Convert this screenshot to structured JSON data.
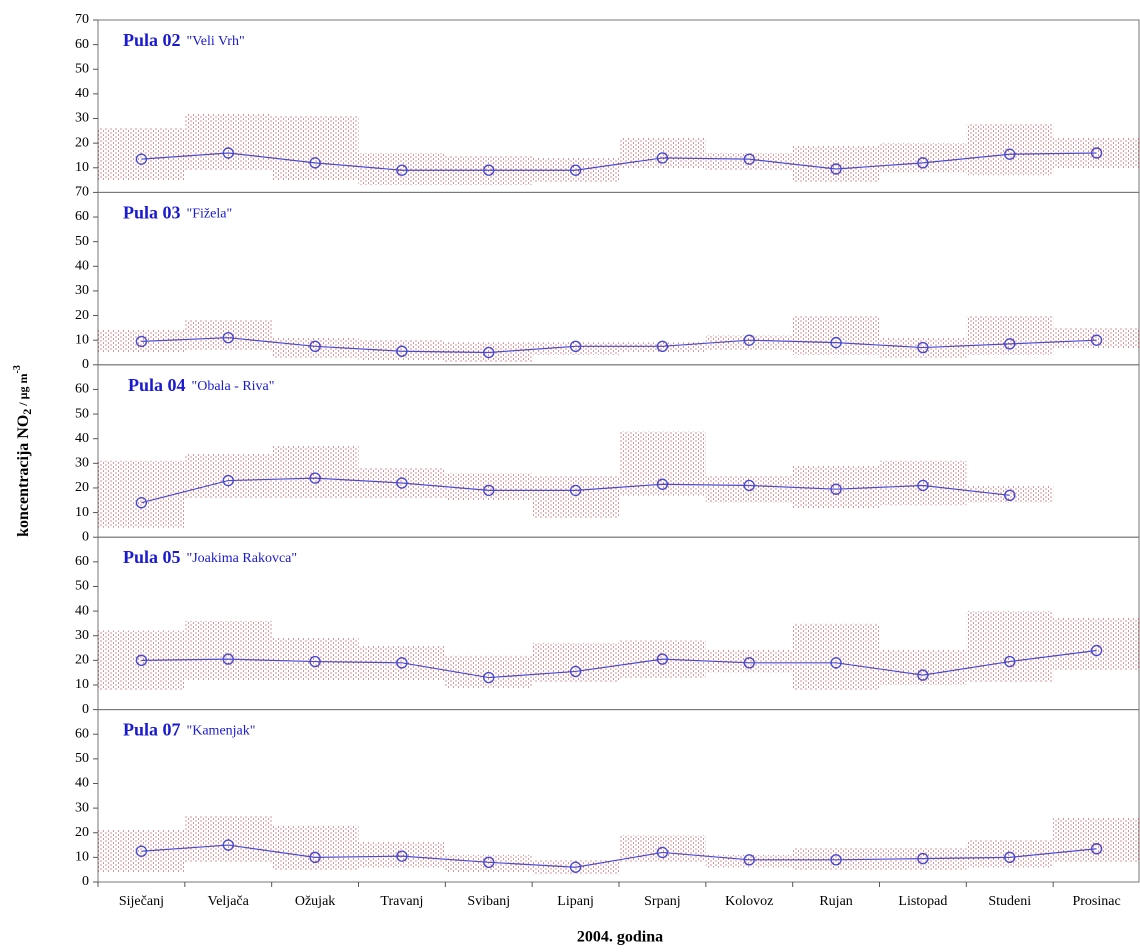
{
  "ylabel": {
    "text": "koncentracija NO",
    "sub": "2",
    "unit": " / µg m",
    "sup": "-3"
  },
  "xlabel": "2004. godina",
  "chart_data": [
    {
      "type": "line",
      "station": "Pula 02",
      "name": "\"Veli Vrh\"",
      "color": "#4a4ad0",
      "range_color": "#c0262c",
      "values": [
        13.5,
        16,
        12,
        9,
        9,
        9,
        14,
        13.5,
        9.5,
        12,
        15.5,
        16
      ],
      "low": [
        5,
        9,
        5,
        3,
        3,
        4,
        10,
        9,
        4,
        8,
        7,
        10
      ],
      "high": [
        26,
        32,
        31,
        16,
        15,
        14,
        22,
        16,
        19,
        20,
        28,
        22
      ],
      "ylim": [
        0,
        70
      ],
      "yticks": [
        10,
        20,
        30,
        40,
        50,
        60,
        70
      ]
    },
    {
      "type": "line",
      "station": "Pula 03",
      "name": "\"Fižela\"",
      "color": "#4a4ad0",
      "range_color": "#c0262c",
      "values": [
        9.5,
        11,
        7.5,
        5.5,
        5,
        7.5,
        7.5,
        10,
        9,
        7,
        8.5,
        10
      ],
      "low": [
        5,
        6,
        3,
        2,
        1,
        4,
        5,
        6,
        4,
        3,
        4,
        7
      ],
      "high": [
        14,
        18,
        11,
        10,
        9,
        9,
        9,
        12,
        20,
        11,
        20,
        15
      ],
      "ylim": [
        0,
        70
      ],
      "yticks": [
        0,
        10,
        20,
        30,
        40,
        50,
        60,
        70
      ]
    },
    {
      "type": "line",
      "station": "Pula 04",
      "name": "\"Obala - Riva\"",
      "color": "#4a4ad0",
      "range_color": "#c0262c",
      "values": [
        14,
        23,
        24,
        22,
        19,
        19,
        21.5,
        21,
        19.5,
        21,
        17,
        null
      ],
      "low": [
        4,
        16,
        16,
        16,
        15,
        8,
        17,
        14,
        12,
        13,
        14,
        null
      ],
      "high": [
        31,
        34,
        37,
        28,
        26,
        25,
        43,
        25,
        29,
        31,
        21,
        null
      ],
      "ylim": [
        0,
        70
      ],
      "yticks": [
        0,
        10,
        20,
        30,
        40,
        50,
        60
      ]
    },
    {
      "type": "line",
      "station": "Pula 05",
      "name": "\"Joakima Rakovca\"",
      "color": "#4a4ad0",
      "range_color": "#c0262c",
      "values": [
        20,
        20.5,
        19.5,
        19,
        13,
        15.5,
        20.5,
        19,
        19,
        14,
        19.5,
        24
      ],
      "low": [
        8,
        12,
        12,
        12,
        9,
        11,
        13,
        15,
        8,
        10,
        11,
        16
      ],
      "high": [
        32,
        36,
        29,
        26,
        22,
        27,
        28,
        24,
        35,
        24,
        40,
        37
      ],
      "ylim": [
        0,
        70
      ],
      "yticks": [
        0,
        10,
        20,
        30,
        40,
        50,
        60
      ]
    },
    {
      "type": "line",
      "station": "Pula 07",
      "name": "\"Kamenjak\"",
      "color": "#4a4ad0",
      "range_color": "#c0262c",
      "categories": [
        "Siječanj",
        "Veljača",
        "Ožujak",
        "Travanj",
        "Svibanj",
        "Lipanj",
        "Srpanj",
        "Kolovoz",
        "Rujan",
        "Listopad",
        "Studeni",
        "Prosinac"
      ],
      "values": [
        12.5,
        15,
        10,
        10.5,
        8,
        6,
        12,
        9,
        9,
        9.5,
        10,
        13.5
      ],
      "low": [
        4,
        8,
        5,
        6,
        4,
        3,
        8,
        6,
        5,
        5,
        6,
        8
      ],
      "high": [
        21,
        27,
        23,
        16,
        11,
        9,
        19,
        11,
        14,
        14,
        17,
        26
      ],
      "ylim": [
        0,
        70
      ],
      "yticks": [
        0,
        10,
        20,
        30,
        40,
        50,
        60
      ]
    }
  ]
}
